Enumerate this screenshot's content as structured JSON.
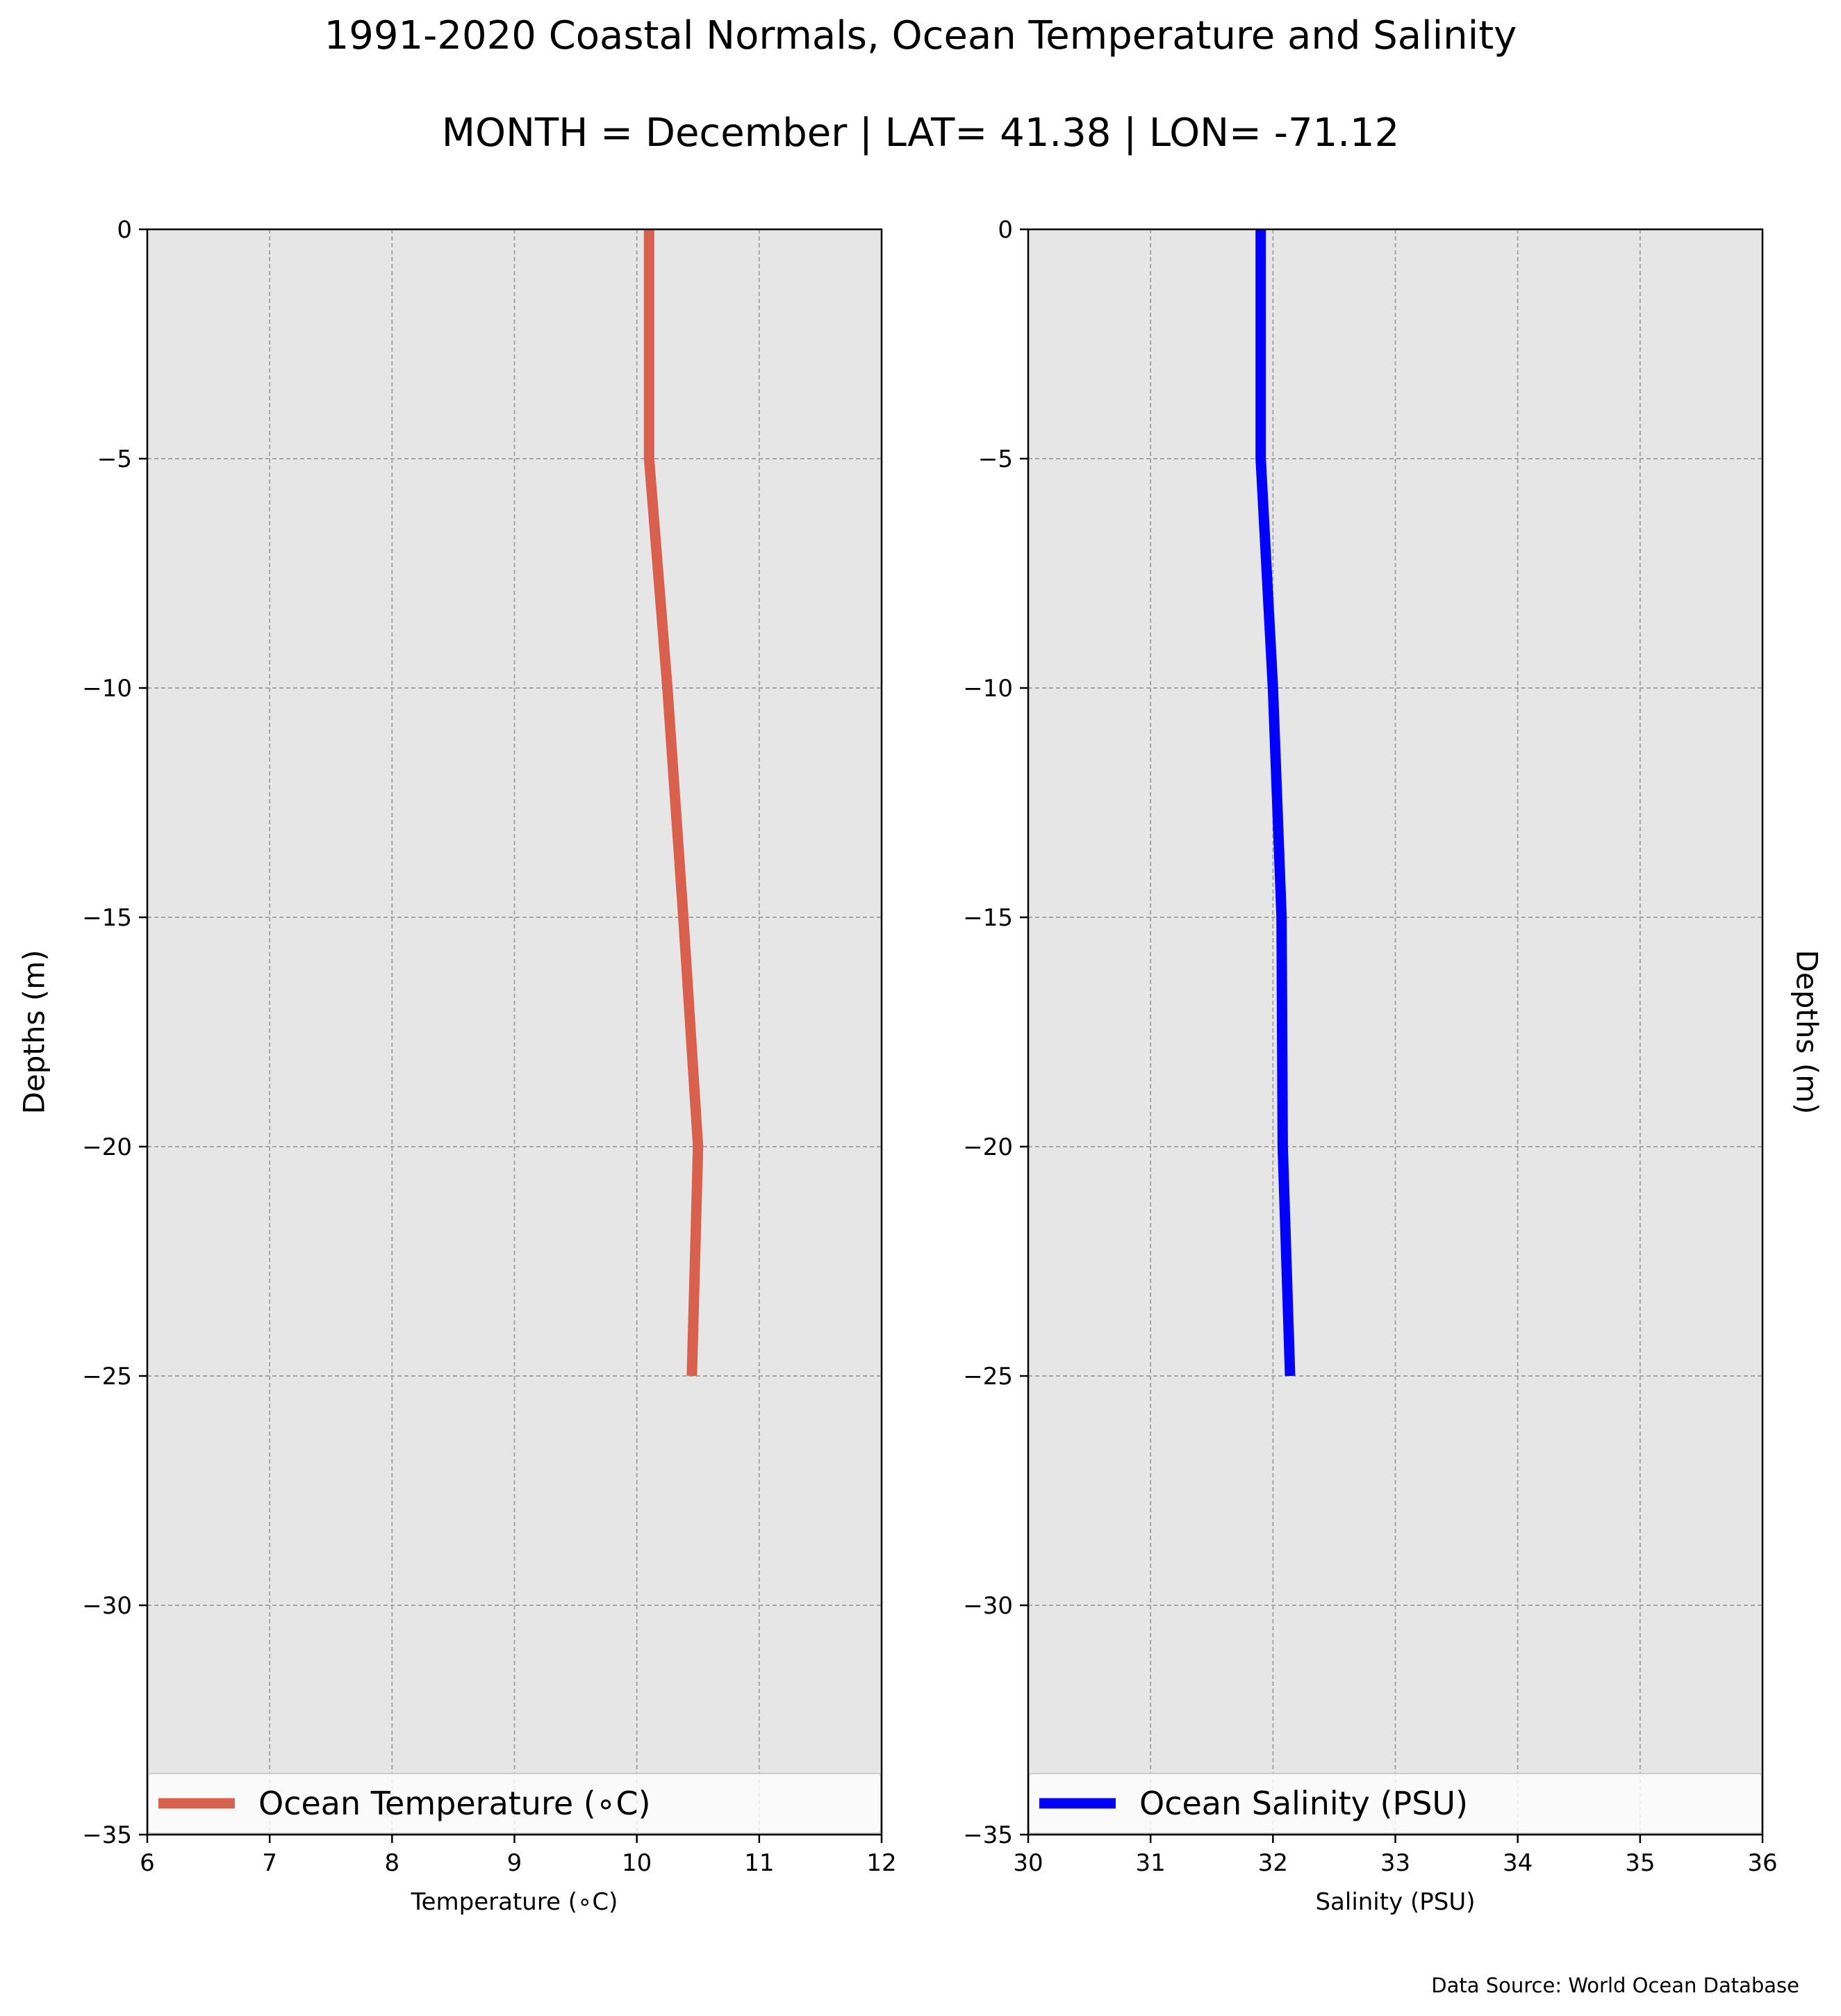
{
  "figure": {
    "title": "1991-2020 Coastal Normals, Ocean Temperature and Salinity",
    "subtitle": "MONTH = December | LAT= 41.38 | LON= -71.12",
    "source_note": "Data Source: World Ocean Database",
    "background_color": "#e6e6e6",
    "grid_color": "#a6a6a6"
  },
  "chart_data": [
    {
      "type": "line",
      "xlabel": "Temperature (∘C)",
      "ylabel": "Depths (m)",
      "xlim": [
        6,
        12
      ],
      "ylim": [
        -35,
        0
      ],
      "xticks": [
        "6",
        "7",
        "8",
        "9",
        "10",
        "11",
        "12"
      ],
      "yticks": [
        "0",
        "−5",
        "−10",
        "−15",
        "−20",
        "−25",
        "−30",
        "−35"
      ],
      "grid": true,
      "legend_position": "bottom",
      "series": [
        {
          "name": "Ocean Temperature (∘C)",
          "color": "#d9604c",
          "x": [
            10.1,
            10.1,
            10.25,
            10.38,
            10.5,
            10.45
          ],
          "y": [
            0,
            -5,
            -10,
            -15,
            -20,
            -25
          ]
        }
      ]
    },
    {
      "type": "line",
      "xlabel": "Salinity (PSU)",
      "ylabel": "Depths (m)",
      "xlim": [
        30,
        36
      ],
      "ylim": [
        -35,
        0
      ],
      "xticks": [
        "30",
        "31",
        "32",
        "33",
        "34",
        "35",
        "36"
      ],
      "yticks": [
        "0",
        "−5",
        "−10",
        "−15",
        "−20",
        "−25",
        "−30",
        "−35"
      ],
      "grid": true,
      "legend_position": "bottom",
      "series": [
        {
          "name": "Ocean Salinity (PSU)",
          "color": "#0000ff",
          "x": [
            31.9,
            31.9,
            32.0,
            32.07,
            32.08,
            32.14
          ],
          "y": [
            0,
            -5,
            -10,
            -15,
            -20,
            -25
          ]
        }
      ]
    }
  ]
}
